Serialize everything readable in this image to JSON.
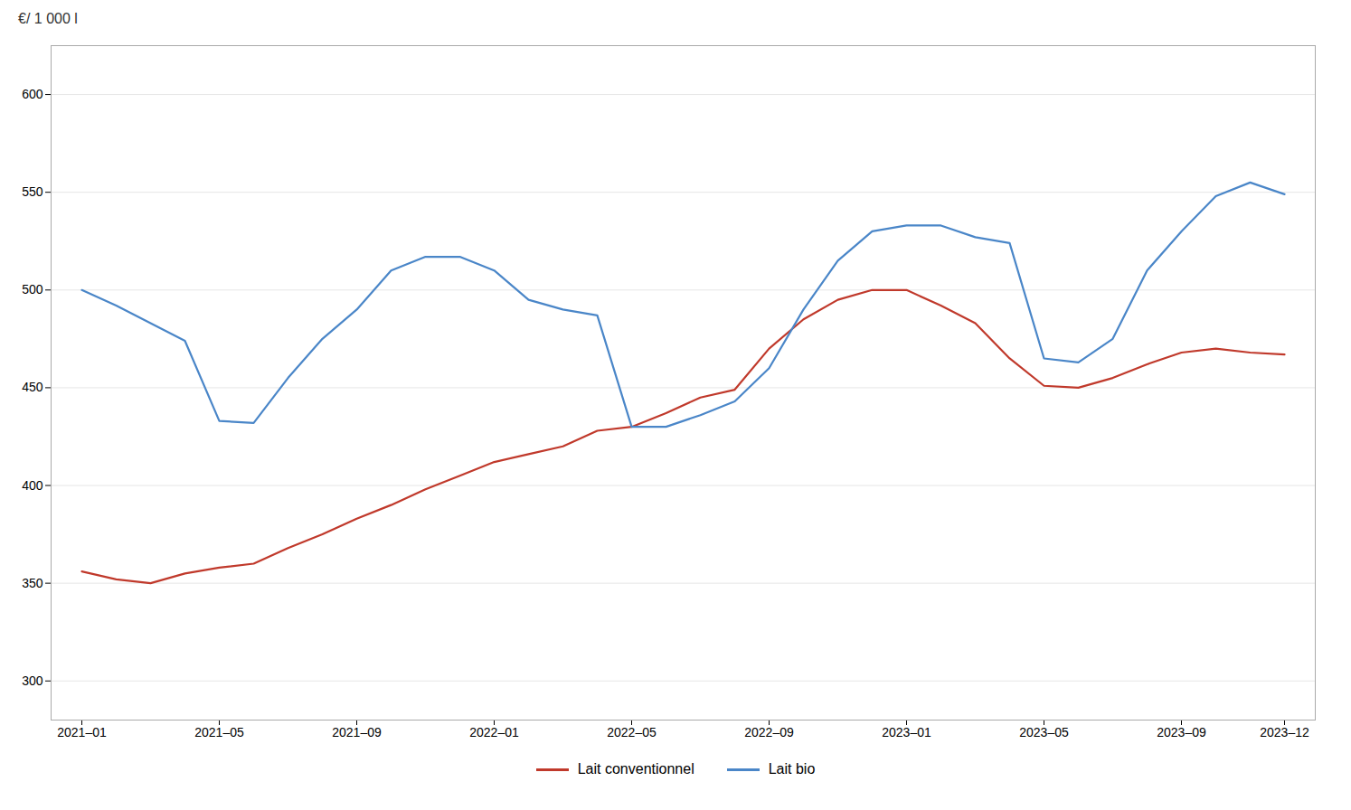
{
  "chart_data": {
    "type": "line",
    "ylabel": "€/ 1 000 l",
    "categories": [
      "2021–01",
      null,
      null,
      null,
      "2021–05",
      null,
      null,
      null,
      "2021–09",
      null,
      null,
      null,
      "2022–01",
      null,
      null,
      null,
      "2022–05",
      null,
      null,
      null,
      "2022–09",
      null,
      null,
      null,
      "2023–01",
      null,
      null,
      null,
      "2023–05",
      null,
      null,
      null,
      "2023–09",
      null,
      null,
      "2023–12"
    ],
    "series": [
      {
        "name": "Lait conventionnel",
        "color": "#c0392b",
        "values": [
          356,
          352,
          350,
          355,
          358,
          360,
          368,
          375,
          383,
          390,
          398,
          405,
          412,
          416,
          420,
          428,
          430,
          437,
          445,
          449,
          470,
          485,
          495,
          500,
          500,
          492,
          483,
          465,
          451,
          450,
          455,
          462,
          468,
          470,
          468,
          467
        ]
      },
      {
        "name": "Lait bio",
        "color": "#4a86c8",
        "values": [
          500,
          492,
          483,
          474,
          433,
          432,
          455,
          475,
          490,
          510,
          517,
          517,
          510,
          495,
          490,
          487,
          430,
          430,
          436,
          443,
          460,
          490,
          515,
          530,
          533,
          533,
          527,
          524,
          465,
          463,
          475,
          510,
          530,
          548,
          555,
          549
        ]
      }
    ],
    "ylim": [
      280,
      625
    ],
    "yticks": [
      300,
      350,
      400,
      450,
      500,
      550,
      600
    ],
    "grid": true,
    "legend": "bottom"
  }
}
